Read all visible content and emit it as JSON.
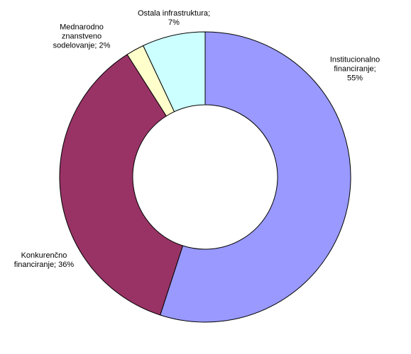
{
  "chart_data": {
    "type": "donut",
    "values": [
      55,
      36,
      2,
      7
    ],
    "value_labels": [
      "Institucionalno\nfinanciranje; 55%",
      "Konkurenčno\nfinanciranje; 36%",
      "Mednarodno\nznanstveno\nsodelovanje; 2%",
      "Ostala infrastruktura;\n7%"
    ],
    "colors": [
      "#9999ff",
      "#993366",
      "#ffffcc",
      "#ccffff"
    ]
  }
}
